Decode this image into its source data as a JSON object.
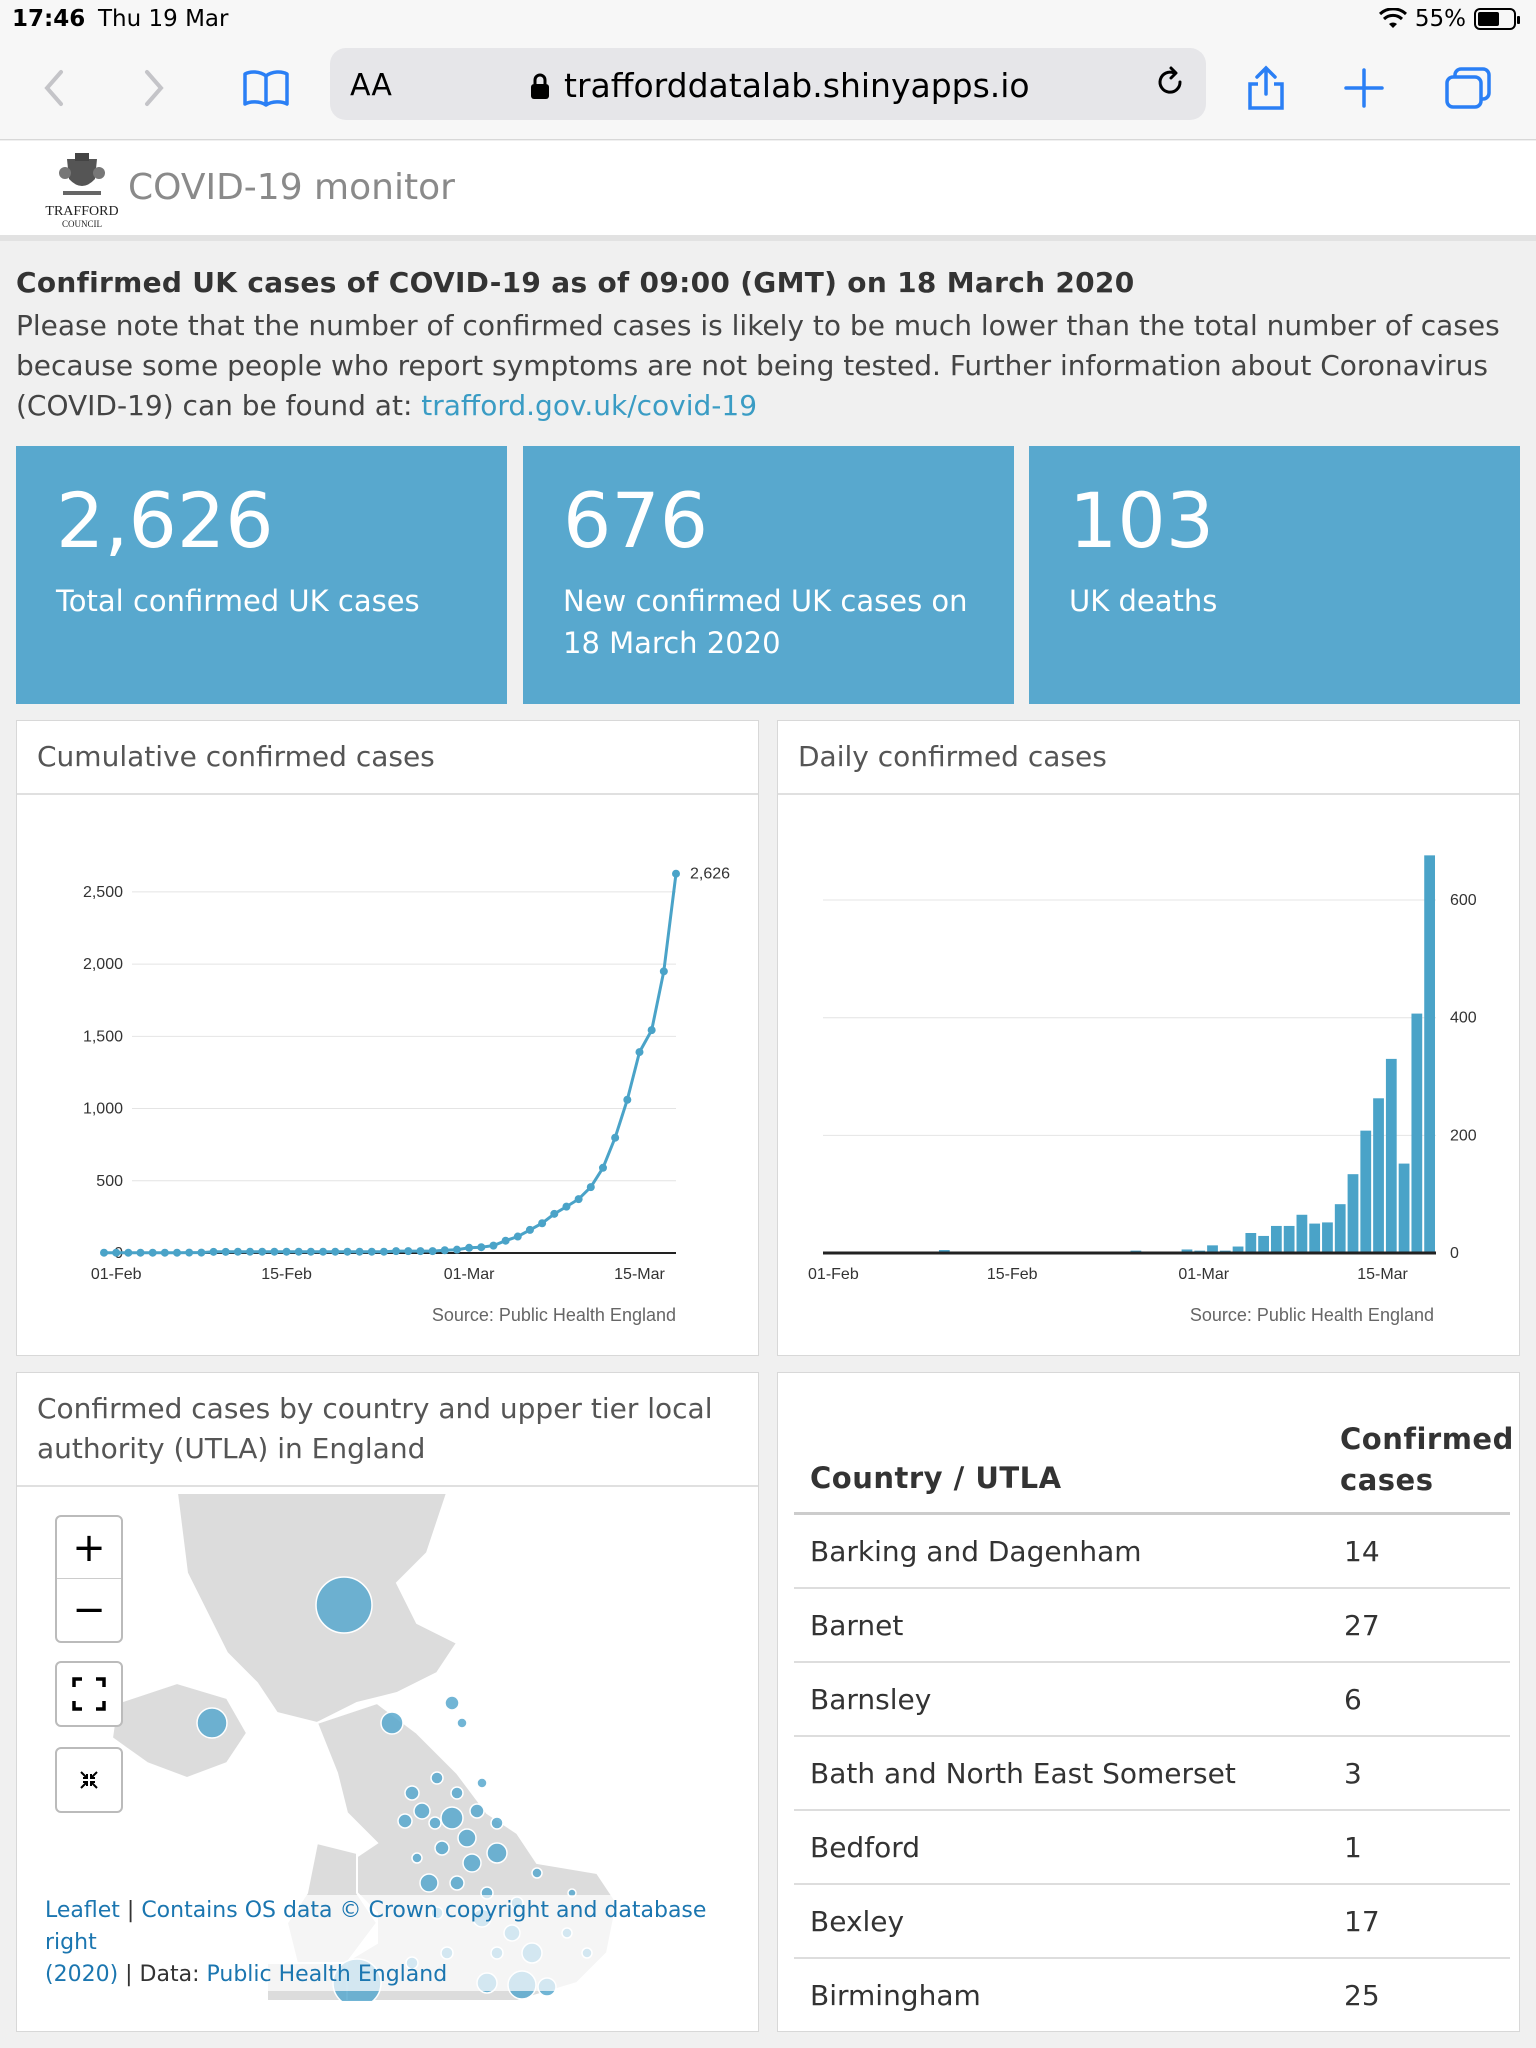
{
  "status": {
    "time": "17:46",
    "date": "Thu 19 Mar",
    "battery": "55%"
  },
  "browser": {
    "aa_label": "AA",
    "url": "trafforddatalab.shinyapps.io"
  },
  "header": {
    "logo_name": "TRAFFORD",
    "logo_sub": "COUNCIL",
    "app_title": "COVID-19 monitor"
  },
  "headline": "Confirmed UK cases of COVID-19 as of 09:00 (GMT) on 18 March 2020",
  "note": {
    "text": "Please note that the number of confirmed cases is likely to be much lower than the total number of cases because some people who report symptoms are not being tested. Further information about Coronavirus (COVID-19) can be found at: ",
    "link": "trafford.gov.uk/covid-19"
  },
  "value_boxes": [
    {
      "value": "2,626",
      "label": "Total confirmed UK cases",
      "color": "#58a8ce"
    },
    {
      "value": "676",
      "label": "New confirmed UK cases on 18 March 2020",
      "color": "#58a8ce"
    },
    {
      "value": "103",
      "label": "UK deaths",
      "color": "#58a8ce"
    }
  ],
  "panels": {
    "cumulative_title": "Cumulative confirmed cases",
    "daily_title": "Daily confirmed cases",
    "map_title": "Confirmed cases by country and upper tier local authority (UTLA) in England",
    "source": "Source: Public Health England"
  },
  "chart_data": [
    {
      "type": "line",
      "title": "Cumulative confirmed cases",
      "x_ticks": [
        "01-Feb",
        "15-Feb",
        "01-Mar",
        "15-Mar"
      ],
      "y_ticks": [
        "0",
        "500",
        "1,000",
        "1,500",
        "2,000",
        "2,500"
      ],
      "ylim": [
        0,
        2700
      ],
      "x_start": "2020-01-31",
      "end_label": "2,626",
      "series": [
        {
          "values": [
            2,
            2,
            2,
            2,
            2,
            2,
            2,
            3,
            3,
            8,
            8,
            9,
            9,
            9,
            9,
            9,
            9,
            9,
            9,
            9,
            9,
            9,
            9,
            9,
            13,
            13,
            13,
            13,
            19,
            23,
            36,
            40,
            51,
            85,
            114,
            160,
            206,
            271,
            321,
            373,
            456,
            590,
            798,
            1061,
            1391,
            1543,
            1950,
            2626
          ]
        }
      ],
      "color": "#4aa3c8",
      "source": "Source: Public Health England"
    },
    {
      "type": "bar",
      "title": "Daily confirmed cases",
      "x_ticks": [
        "01-Feb",
        "15-Feb",
        "01-Mar",
        "15-Mar"
      ],
      "y_ticks": [
        "0",
        "200",
        "400",
        "600"
      ],
      "ylim": [
        0,
        680
      ],
      "x_start": "2020-01-31",
      "series": [
        {
          "values": [
            2,
            0,
            0,
            0,
            0,
            0,
            0,
            1,
            0,
            5,
            0,
            1,
            0,
            0,
            0,
            0,
            0,
            0,
            0,
            0,
            0,
            0,
            0,
            0,
            4,
            0,
            0,
            0,
            6,
            4,
            13,
            4,
            11,
            34,
            29,
            46,
            46,
            65,
            50,
            52,
            83,
            134,
            208,
            263,
            330,
            152,
            407,
            676
          ]
        }
      ],
      "color": "#4aa3c8",
      "source": "Source: Public Health England"
    }
  ],
  "map": {
    "zoom_in": "+",
    "zoom_out": "−",
    "attribution": {
      "leaflet": "Leaflet",
      "os": "Contains OS data © Crown copyright and database right",
      "year": "(2020)",
      "data_prefix": "| Data:",
      "phe": "Public Health England"
    }
  },
  "table": {
    "col1": "Country / UTLA",
    "col2": "Confirmed cases",
    "rows": [
      {
        "name": "Barking and Dagenham",
        "cases": "14"
      },
      {
        "name": "Barnet",
        "cases": "27"
      },
      {
        "name": "Barnsley",
        "cases": "6"
      },
      {
        "name": "Bath and North East Somerset",
        "cases": "3"
      },
      {
        "name": "Bedford",
        "cases": "1"
      },
      {
        "name": "Bexley",
        "cases": "17"
      },
      {
        "name": "Birmingham",
        "cases": "25"
      }
    ]
  }
}
